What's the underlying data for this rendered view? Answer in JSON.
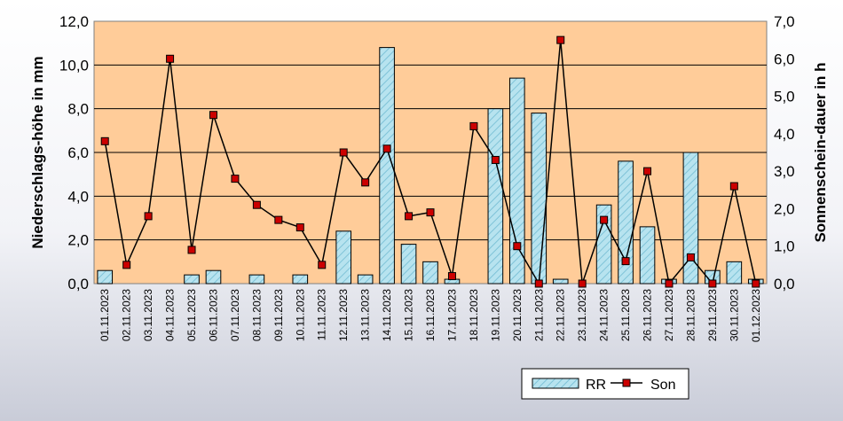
{
  "chart_data": {
    "type": "bar",
    "categories": [
      "01.11.2023",
      "02.11.2023",
      "03.11.2023",
      "04.11.2023",
      "05.11.2023",
      "06.11.2023",
      "07.11.2023",
      "08.11.2023",
      "09.11.2023",
      "10.11.2023",
      "11.11.2023",
      "12.11.2023",
      "13.11.2023",
      "14.11.2023",
      "15.11.2023",
      "16.11.2023",
      "17.11.2023",
      "18.11.2023",
      "19.11.2023",
      "20.11.2023",
      "21.11.2023",
      "22.11.2023",
      "23.11.2023",
      "24.11.2023",
      "25.11.2023",
      "26.11.2023",
      "27.11.2023",
      "28.11.2023",
      "29.11.2023",
      "30.11.2023",
      "01.12.2023"
    ],
    "series": [
      {
        "name": "RR",
        "type": "bar",
        "axis": "left",
        "values": [
          0.6,
          0,
          0,
          0,
          0.4,
          0.6,
          0,
          0.4,
          0,
          0.4,
          0,
          2.4,
          0.4,
          10.8,
          1.8,
          1.0,
          0.2,
          0,
          8.0,
          9.4,
          7.8,
          0.2,
          0,
          3.6,
          5.6,
          2.6,
          0.2,
          6.0,
          0.6,
          1.0,
          0.2
        ]
      },
      {
        "name": "Son",
        "type": "line",
        "axis": "right",
        "values": [
          3.8,
          0.5,
          1.8,
          6.0,
          0.9,
          4.5,
          2.8,
          2.1,
          1.7,
          1.5,
          0.5,
          3.5,
          2.7,
          3.6,
          1.8,
          1.9,
          0.2,
          4.2,
          3.3,
          1.0,
          0.0,
          6.5,
          0.0,
          1.7,
          0.6,
          3.0,
          0.0,
          0.7,
          0.0,
          2.6,
          0.0
        ]
      }
    ],
    "ylabel": "Niederschlags-höhe in mm",
    "y2label": "Sonnenschein-dauer in h",
    "ylim": [
      0,
      12
    ],
    "y2lim": [
      0,
      7
    ],
    "yticks": [
      "0,0",
      "2,0",
      "4,0",
      "6,0",
      "8,0",
      "10,0",
      "12,0"
    ],
    "y2ticks": [
      "0,0",
      "1,0",
      "2,0",
      "3,0",
      "4,0",
      "5,0",
      "6,0",
      "7,0"
    ],
    "grid": true,
    "legend_position": "bottom-center",
    "colors": {
      "plot_background": "#ffcc99",
      "bar_fill": "#a6dcea",
      "bar_border": "#000000",
      "line": "#000000",
      "marker_fill": "#cc0000"
    }
  }
}
